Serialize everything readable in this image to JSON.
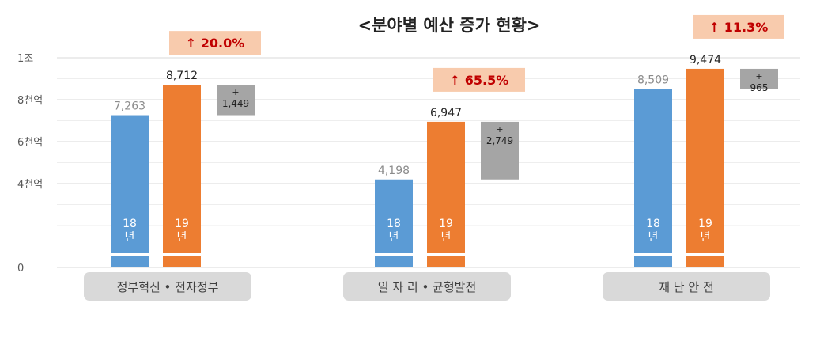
{
  "chart_data": {
    "type": "bar",
    "title": "<분야별 예산 증가 현황>",
    "xlabel": "",
    "ylabel": "",
    "y_ticks": [
      {
        "value": 0,
        "label": "0"
      },
      {
        "value": 4000,
        "label": "4천억"
      },
      {
        "value": 6000,
        "label": "6천억"
      },
      {
        "value": 8000,
        "label": "8천억"
      },
      {
        "value": 10000,
        "label": "1조"
      }
    ],
    "grid": true,
    "categories": [
      "정부혁신 • 전자정부",
      "일 자 리 • 균형발전",
      "재  난  안  전"
    ],
    "series": [
      {
        "name": "18년",
        "year_label": "18\n년",
        "color": "#5b9bd5",
        "values": [
          7263,
          4198,
          8509
        ],
        "value_labels": [
          "7,263",
          "4,198",
          "8,509"
        ]
      },
      {
        "name": "19년",
        "year_label": "19\n년",
        "color": "#ed7d31",
        "values": [
          8712,
          6947,
          9474
        ],
        "value_labels": [
          "8,712",
          "6,947",
          "9,474"
        ]
      }
    ],
    "increase": {
      "color": "#a5a5a5",
      "values": [
        1449,
        2749,
        965
      ],
      "labels": [
        "1,449",
        "2,749",
        "965"
      ],
      "sign": "+"
    },
    "growth": {
      "labels": [
        "20.0%",
        "65.5%",
        "11.3%"
      ],
      "arrow": "↑",
      "badge_color": "#f8cbad",
      "text_color": "#c00000"
    }
  }
}
